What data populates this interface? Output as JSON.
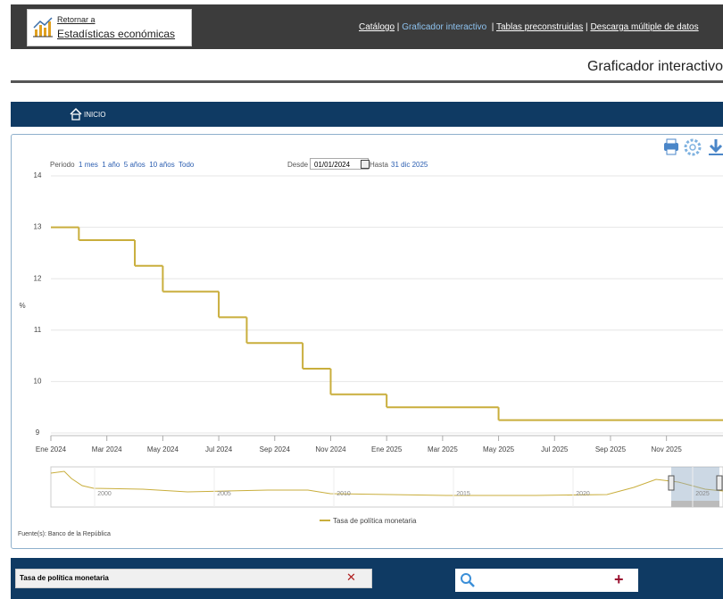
{
  "header": {
    "back_label": "Retornar a",
    "site": "Estadísticas económicas",
    "nav": [
      "Catálogo",
      "Graficador interactivo",
      "Tablas preconstruidas",
      "Descarga múltiple de datos"
    ]
  },
  "page_title": "Graficador interactivo",
  "breadcrumb": "INICIO",
  "controls": {
    "period_label": "Periodo",
    "periods": [
      "1 mes",
      "1 año",
      "5 años",
      "10 años",
      "Todo"
    ],
    "from_label": "Desde",
    "from": "01/01/2024",
    "to_label": "Hasta",
    "to": "31 dic 2025"
  },
  "chart_data": {
    "type": "line",
    "step": true,
    "y_label": "%",
    "x": [
      "2024-01",
      "2024-02",
      "2024-04",
      "2024-05",
      "2024-07",
      "2024-08",
      "2024-10",
      "2024-11",
      "2025-01",
      "2025-05"
    ],
    "series": [
      {
        "name": "Tasa de política monetaria",
        "color": "#c9ae3c",
        "values": [
          13,
          12.75,
          12.25,
          11.75,
          11.25,
          10.75,
          10.25,
          9.75,
          9.5,
          9.25
        ]
      }
    ],
    "xlim": [
      "2024-01",
      "2025-12"
    ],
    "xticks": [
      {
        "value": "2024-01",
        "label": "Ene 2024"
      },
      {
        "value": "2024-03",
        "label": "Mar 2024"
      },
      {
        "value": "2024-05",
        "label": "May 2024"
      },
      {
        "value": "2024-07",
        "label": "Jul 2024"
      },
      {
        "value": "2024-09",
        "label": "Sep 2024"
      },
      {
        "value": "2024-11",
        "label": "Nov 2024"
      },
      {
        "value": "2025-01",
        "label": "Ene 2025"
      },
      {
        "value": "2025-03",
        "label": "Mar 2025"
      },
      {
        "value": "2025-05",
        "label": "May 2025"
      },
      {
        "value": "2025-07",
        "label": "Jul 2025"
      },
      {
        "value": "2025-09",
        "label": "Sep 2025"
      },
      {
        "value": "2025-11",
        "label": "Nov 2025"
      }
    ],
    "ylim": [
      9,
      14
    ],
    "yticks": [
      9,
      10,
      11,
      12,
      13,
      14
    ],
    "grid": true
  },
  "navigator": {
    "labels": [
      "2000",
      "2005",
      "2010",
      "2015",
      "2020",
      "2025"
    ]
  },
  "source": "Fuente(s): Banco de la República",
  "footer": {
    "selected": "Tasa de política monetaria"
  }
}
